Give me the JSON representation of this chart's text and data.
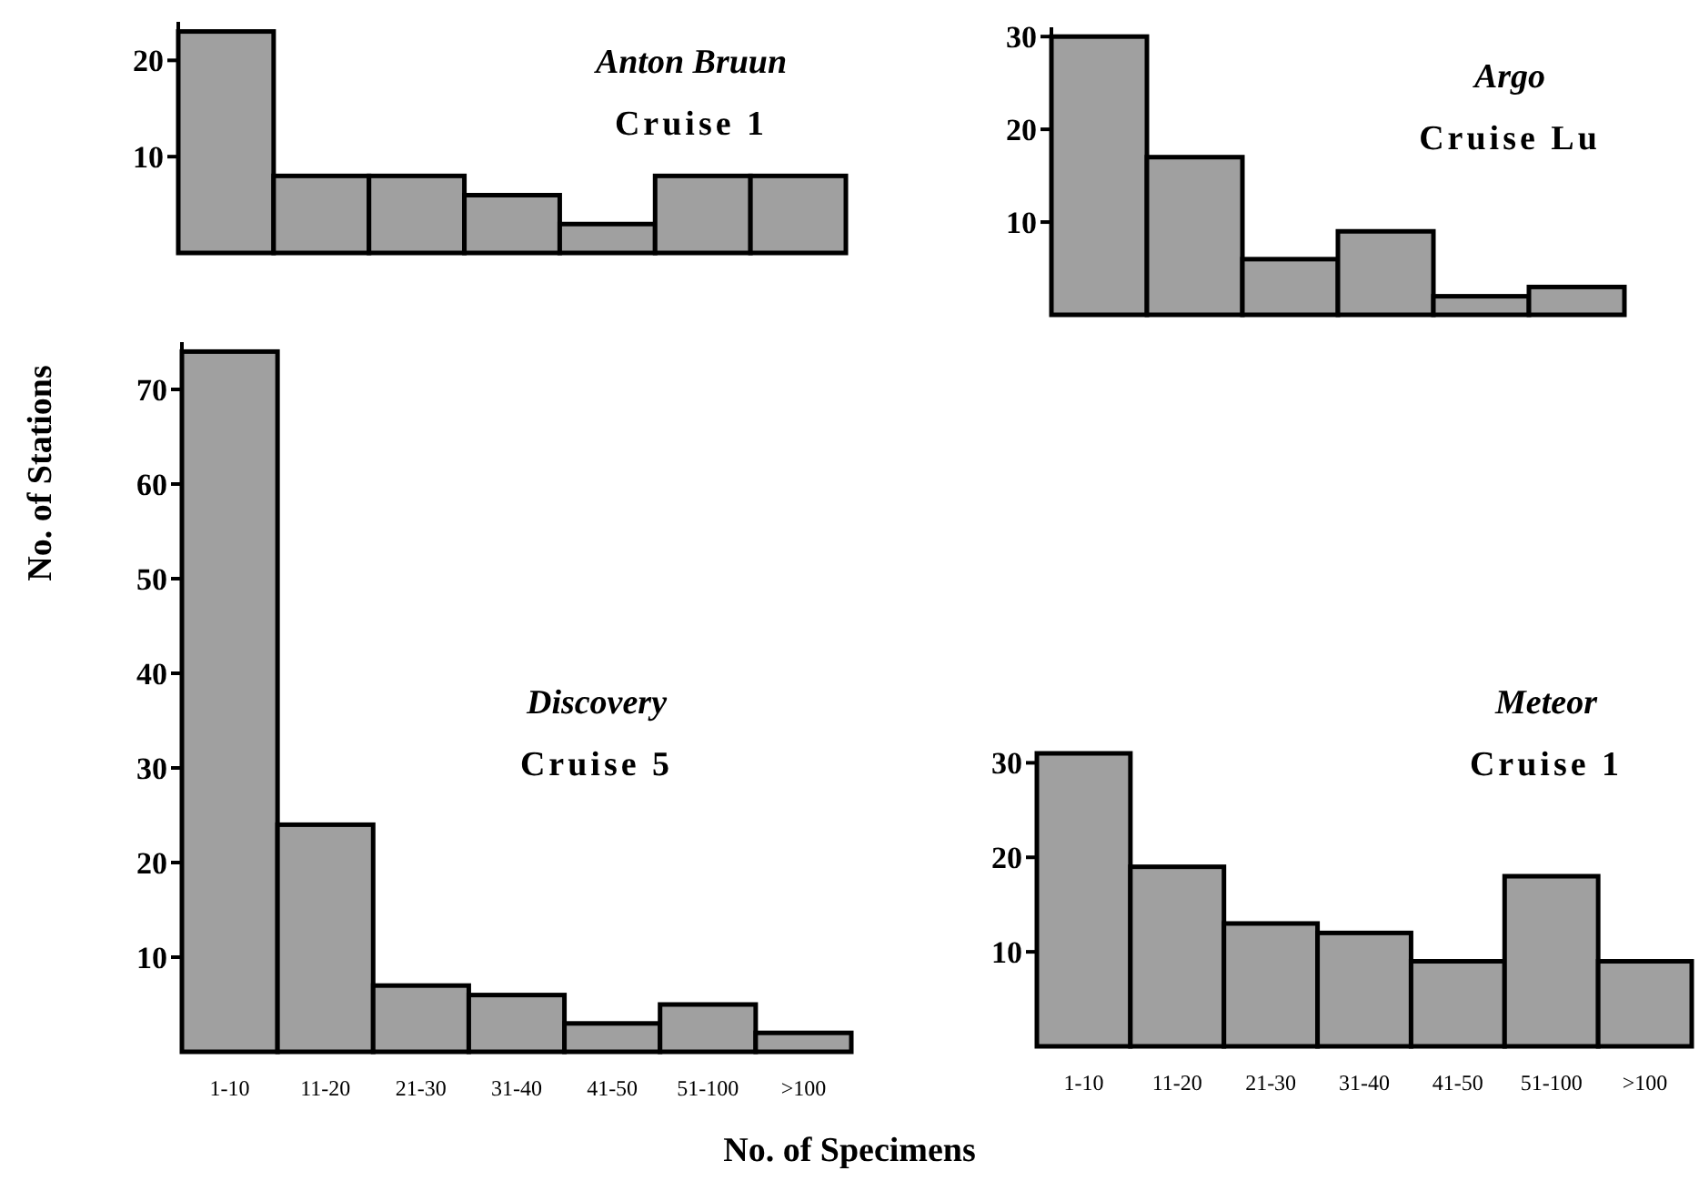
{
  "chart_data": [
    {
      "type": "bar",
      "title": "Anton Bruun",
      "subtitle": "Cruise 1",
      "categories": [
        null,
        null,
        null,
        null,
        null,
        null,
        null
      ],
      "values": [
        23,
        8,
        8,
        6,
        3,
        8,
        8
      ],
      "color": "#a0a0a0",
      "ylim": [
        0,
        24
      ],
      "yticks": [
        10,
        20
      ]
    },
    {
      "type": "bar",
      "title": "Argo",
      "subtitle": "Cruise Lu",
      "categories": [
        null,
        null,
        null,
        null,
        null,
        null
      ],
      "values": [
        30,
        17,
        6,
        9,
        2,
        3
      ],
      "color": "#a0a0a0",
      "ylim": [
        0,
        31
      ],
      "yticks": [
        10,
        20,
        30
      ]
    },
    {
      "type": "bar",
      "title": "Discovery",
      "subtitle": "Cruise 5",
      "xlabel": "No. of Specimens",
      "ylabel": "No. of Stations",
      "categories": [
        "1-10",
        "11-20",
        "21-30",
        "31-40",
        "41-50",
        "51-100",
        ">100"
      ],
      "values": [
        74,
        24,
        7,
        6,
        3,
        5,
        2
      ],
      "color": "#a0a0a0",
      "ylim": [
        0,
        75
      ],
      "yticks": [
        10,
        20,
        30,
        40,
        50,
        60,
        70
      ]
    },
    {
      "type": "bar",
      "title": "Meteor",
      "subtitle": "Cruise 1",
      "categories": [
        "1-10",
        "11-20",
        "21-30",
        "31-40",
        "41-50",
        "51-100",
        ">100"
      ],
      "values": [
        31,
        19,
        13,
        12,
        9,
        18,
        9
      ],
      "color": "#a0a0a0",
      "ylim": [
        0,
        31
      ],
      "yticks": [
        10,
        20,
        30
      ]
    }
  ]
}
